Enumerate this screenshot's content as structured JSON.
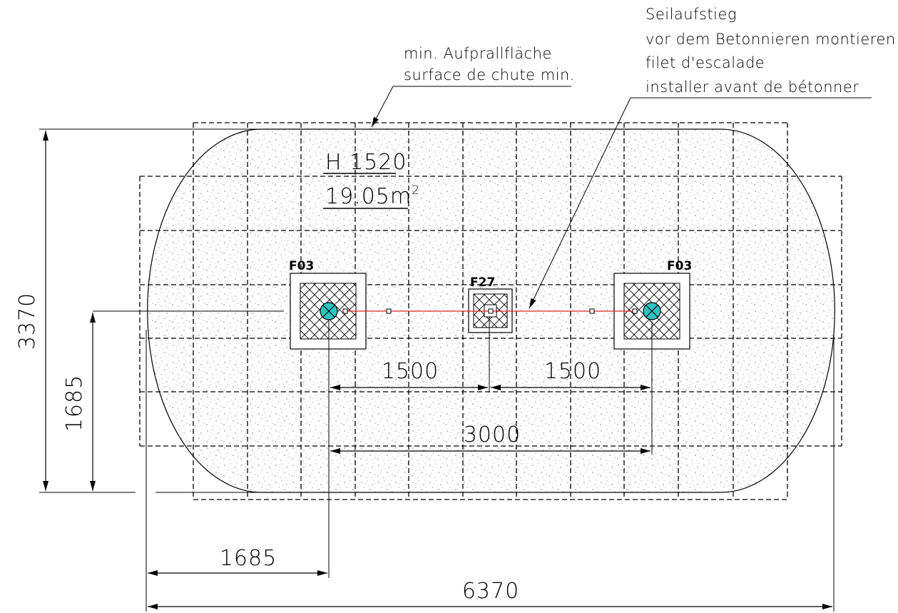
{
  "notes": {
    "surface": [
      "min. Aufprallfläche",
      "surface de chute min."
    ],
    "net": [
      "Seilaufstieg",
      "vor dem Betonnieren montieren",
      "filet d'escalade",
      "installer avant de bétonner"
    ]
  },
  "area": {
    "height": "H 1520",
    "area_value": "19.05m",
    "area_exp": "2"
  },
  "foundations": {
    "left": "F03",
    "center": "F27",
    "right": "F03"
  },
  "dimensions": {
    "total_width": "6370",
    "total_height": "3370",
    "half_height": "1685",
    "left_offset": "1685",
    "span_left": "1500",
    "span_right": "1500",
    "span_total": "3000"
  },
  "colors": {
    "post": "#2ec4c4",
    "rope": "#e02020",
    "line": "#000000",
    "fill_dot": "#8a8a8a"
  }
}
